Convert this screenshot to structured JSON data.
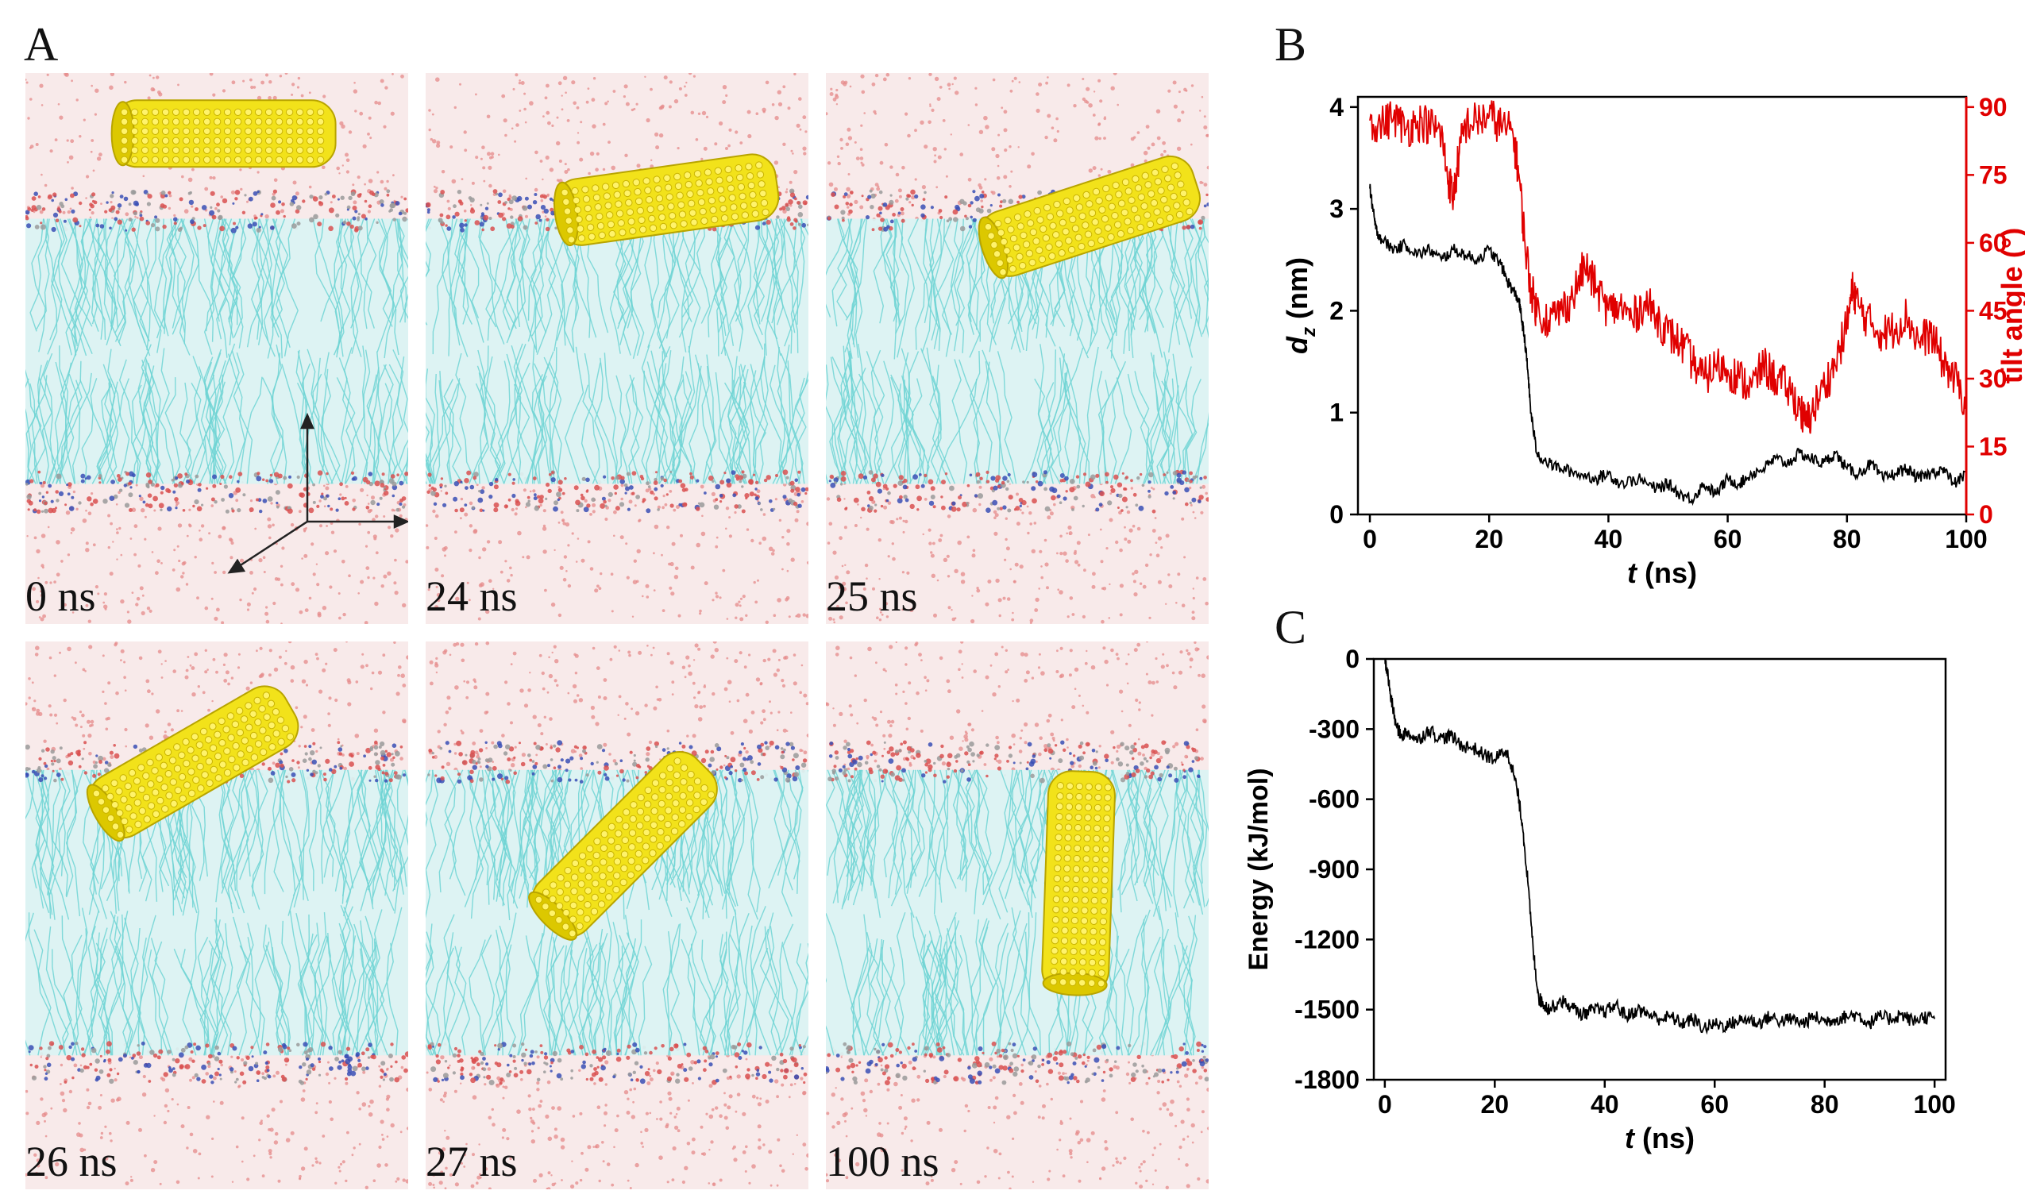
{
  "panels": {
    "A": {
      "letter": "A"
    },
    "B": {
      "letter": "B"
    },
    "C": {
      "letter": "C"
    }
  },
  "snapshots": [
    {
      "label": "0 ns",
      "tube_angle_deg": 0
    },
    {
      "label": "24 ns",
      "tube_angle_deg": -8
    },
    {
      "label": "25 ns",
      "tube_angle_deg": -18
    },
    {
      "label": "26 ns",
      "tube_angle_deg": -30
    },
    {
      "label": "27 ns",
      "tube_angle_deg": -45
    },
    {
      "label": "100 ns",
      "tube_angle_deg": -88
    }
  ],
  "colors": {
    "water": "#e58a8a",
    "lipid_tail": "#6fd3d3",
    "headgroup_blue": "#3a4fb5",
    "tube": "#f2e21a",
    "tube_dark": "#b8a400",
    "series_black": "#000000",
    "series_red": "#e00000"
  },
  "chart_data": [
    {
      "panel": "B",
      "type": "line",
      "xlabel_italic": "t",
      "xlabel_unit": " (ns)",
      "ylabel_main": "d",
      "ylabel_sub": "z",
      "ylabel_unit": " (nm)",
      "y2label": "tilt angle (°)",
      "xlim": [
        -2,
        100
      ],
      "ylim": [
        0,
        4.1
      ],
      "y2lim": [
        0,
        92.25
      ],
      "xticks": [
        0,
        20,
        40,
        60,
        80,
        100
      ],
      "yticks": [
        0,
        1,
        2,
        3,
        4
      ],
      "y2ticks": [
        0,
        15,
        30,
        45,
        60,
        75,
        90
      ],
      "series": [
        {
          "name": "d_z",
          "axis": "left",
          "color": "#000000",
          "x": [
            0,
            0.5,
            1,
            2,
            4,
            6,
            8,
            10,
            12,
            14,
            16,
            18,
            20,
            22,
            23,
            24,
            25,
            25.5,
            26,
            26.5,
            27,
            28,
            30,
            32,
            35,
            38,
            40,
            42,
            45,
            48,
            50,
            52,
            54,
            56,
            58,
            60,
            62,
            64,
            66,
            68,
            70,
            72,
            74,
            76,
            78,
            80,
            82,
            84,
            86,
            88,
            90,
            92,
            94,
            96,
            98,
            100
          ],
          "y": [
            3.2,
            3.0,
            2.8,
            2.7,
            2.6,
            2.65,
            2.55,
            2.6,
            2.5,
            2.6,
            2.55,
            2.5,
            2.6,
            2.45,
            2.3,
            2.2,
            2.1,
            1.9,
            1.7,
            1.4,
            1.0,
            0.6,
            0.5,
            0.45,
            0.4,
            0.35,
            0.4,
            0.3,
            0.35,
            0.25,
            0.3,
            0.2,
            0.15,
            0.3,
            0.2,
            0.35,
            0.3,
            0.4,
            0.45,
            0.55,
            0.5,
            0.6,
            0.55,
            0.5,
            0.6,
            0.45,
            0.4,
            0.5,
            0.35,
            0.4,
            0.45,
            0.35,
            0.4,
            0.45,
            0.3,
            0.4
          ]
        },
        {
          "name": "tilt angle",
          "axis": "right",
          "color": "#e00000",
          "x": [
            0,
            2,
            4,
            6,
            8,
            10,
            12,
            13,
            14,
            15,
            16,
            18,
            20,
            22,
            24,
            25,
            26,
            27,
            28,
            30,
            32,
            34,
            36,
            38,
            40,
            42,
            44,
            46,
            48,
            50,
            52,
            54,
            56,
            58,
            60,
            62,
            64,
            66,
            68,
            70,
            72,
            73,
            74,
            76,
            78,
            80,
            81,
            82,
            84,
            86,
            88,
            90,
            92,
            94,
            96,
            98,
            100
          ],
          "y": [
            87,
            86,
            88,
            85,
            87,
            86,
            84,
            75,
            70,
            80,
            86,
            87,
            88,
            86,
            84,
            75,
            60,
            50,
            45,
            43,
            45,
            48,
            55,
            50,
            45,
            46,
            43,
            47,
            44,
            40,
            38,
            34,
            30,
            33,
            32,
            30,
            28,
            33,
            30,
            28,
            24,
            20,
            22,
            28,
            33,
            42,
            50,
            46,
            42,
            40,
            41,
            44,
            38,
            40,
            34,
            30,
            25
          ]
        }
      ]
    },
    {
      "panel": "C",
      "type": "line",
      "xlabel_italic": "t",
      "xlabel_unit": " (ns)",
      "ylabel": "Energy (kJ/mol)",
      "xlim": [
        -2,
        102
      ],
      "ylim": [
        -1800,
        0
      ],
      "xticks": [
        0,
        20,
        40,
        60,
        80,
        100
      ],
      "yticks": [
        0,
        -300,
        -600,
        -900,
        -1200,
        -1500,
        -1800
      ],
      "series": [
        {
          "name": "Energy",
          "color": "#000000",
          "x": [
            0,
            0.5,
            1,
            2,
            3,
            4,
            6,
            8,
            10,
            12,
            14,
            16,
            18,
            20,
            22,
            23,
            24,
            25,
            26,
            27,
            28,
            29,
            30,
            32,
            34,
            36,
            38,
            40,
            42,
            44,
            46,
            48,
            50,
            52,
            54,
            56,
            58,
            60,
            62,
            64,
            66,
            68,
            70,
            72,
            74,
            76,
            78,
            80,
            82,
            84,
            86,
            88,
            90,
            92,
            94,
            96,
            98,
            100
          ],
          "y": [
            0,
            -60,
            -150,
            -280,
            -330,
            -310,
            -350,
            -300,
            -340,
            -330,
            -370,
            -380,
            -410,
            -430,
            -390,
            -450,
            -550,
            -700,
            -950,
            -1250,
            -1450,
            -1480,
            -1500,
            -1460,
            -1490,
            -1520,
            -1500,
            -1510,
            -1480,
            -1530,
            -1500,
            -1520,
            -1540,
            -1530,
            -1560,
            -1540,
            -1580,
            -1560,
            -1570,
            -1550,
            -1540,
            -1560,
            -1530,
            -1550,
            -1540,
            -1560,
            -1530,
            -1550,
            -1540,
            -1530,
            -1520,
            -1560,
            -1530,
            -1540,
            -1520,
            -1550,
            -1530,
            -1540
          ]
        }
      ]
    }
  ]
}
